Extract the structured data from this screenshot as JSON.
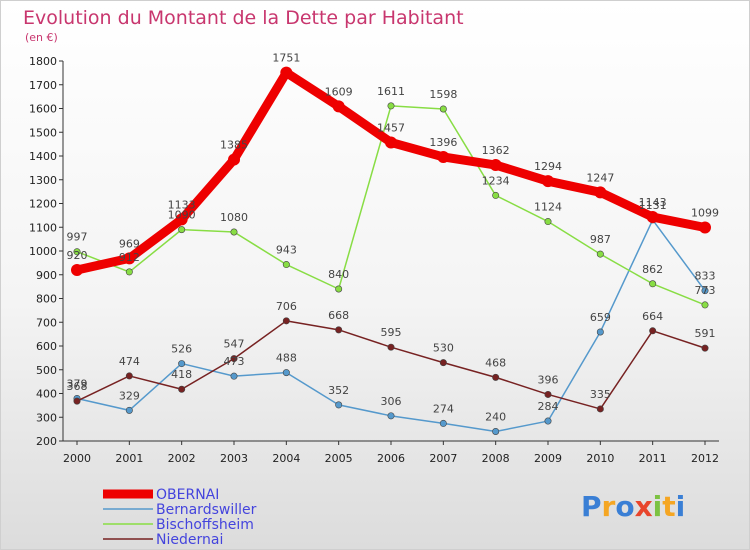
{
  "chart_data": {
    "type": "line",
    "title": "Evolution du Montant de la Dette par Habitant",
    "subtitle": "(en €)",
    "xlabel": "",
    "ylabel": "",
    "x": [
      2000,
      2001,
      2002,
      2003,
      2004,
      2005,
      2006,
      2007,
      2008,
      2009,
      2010,
      2011,
      2012
    ],
    "ylim": [
      200,
      1800
    ],
    "yticks": [
      200,
      300,
      400,
      500,
      600,
      700,
      800,
      900,
      1000,
      1100,
      1200,
      1300,
      1400,
      1500,
      1600,
      1700,
      1800
    ],
    "grid": false,
    "legend_position": "bottom-left",
    "series": [
      {
        "name": "OBERNAI",
        "color": "#ee0000",
        "values": [
          920,
          969,
          1133,
          1385,
          1751,
          1609,
          1457,
          1396,
          1362,
          1294,
          1247,
          1143,
          1099
        ]
      },
      {
        "name": "Bernardswiller",
        "color": "#5599cc",
        "values": [
          379,
          329,
          526,
          473,
          488,
          352,
          306,
          274,
          240,
          284,
          659,
          1131,
          833
        ]
      },
      {
        "name": "Bischoffsheim",
        "color": "#88dd44",
        "values": [
          997,
          912,
          1090,
          1080,
          943,
          840,
          1611,
          1598,
          1234,
          1124,
          987,
          862,
          773
        ]
      },
      {
        "name": "Niedernai",
        "color": "#772222",
        "values": [
          368,
          474,
          418,
          547,
          706,
          668,
          595,
          530,
          468,
          396,
          335,
          664,
          591
        ]
      }
    ]
  },
  "logo": {
    "letters": [
      "P",
      "r",
      "o",
      "x",
      "i",
      "t",
      "i"
    ],
    "colors": [
      "#3a7fd5",
      "#f5a623",
      "#3a7fd5",
      "#e8452c",
      "#7cc242",
      "#f5a623",
      "#3a7fd5"
    ]
  }
}
